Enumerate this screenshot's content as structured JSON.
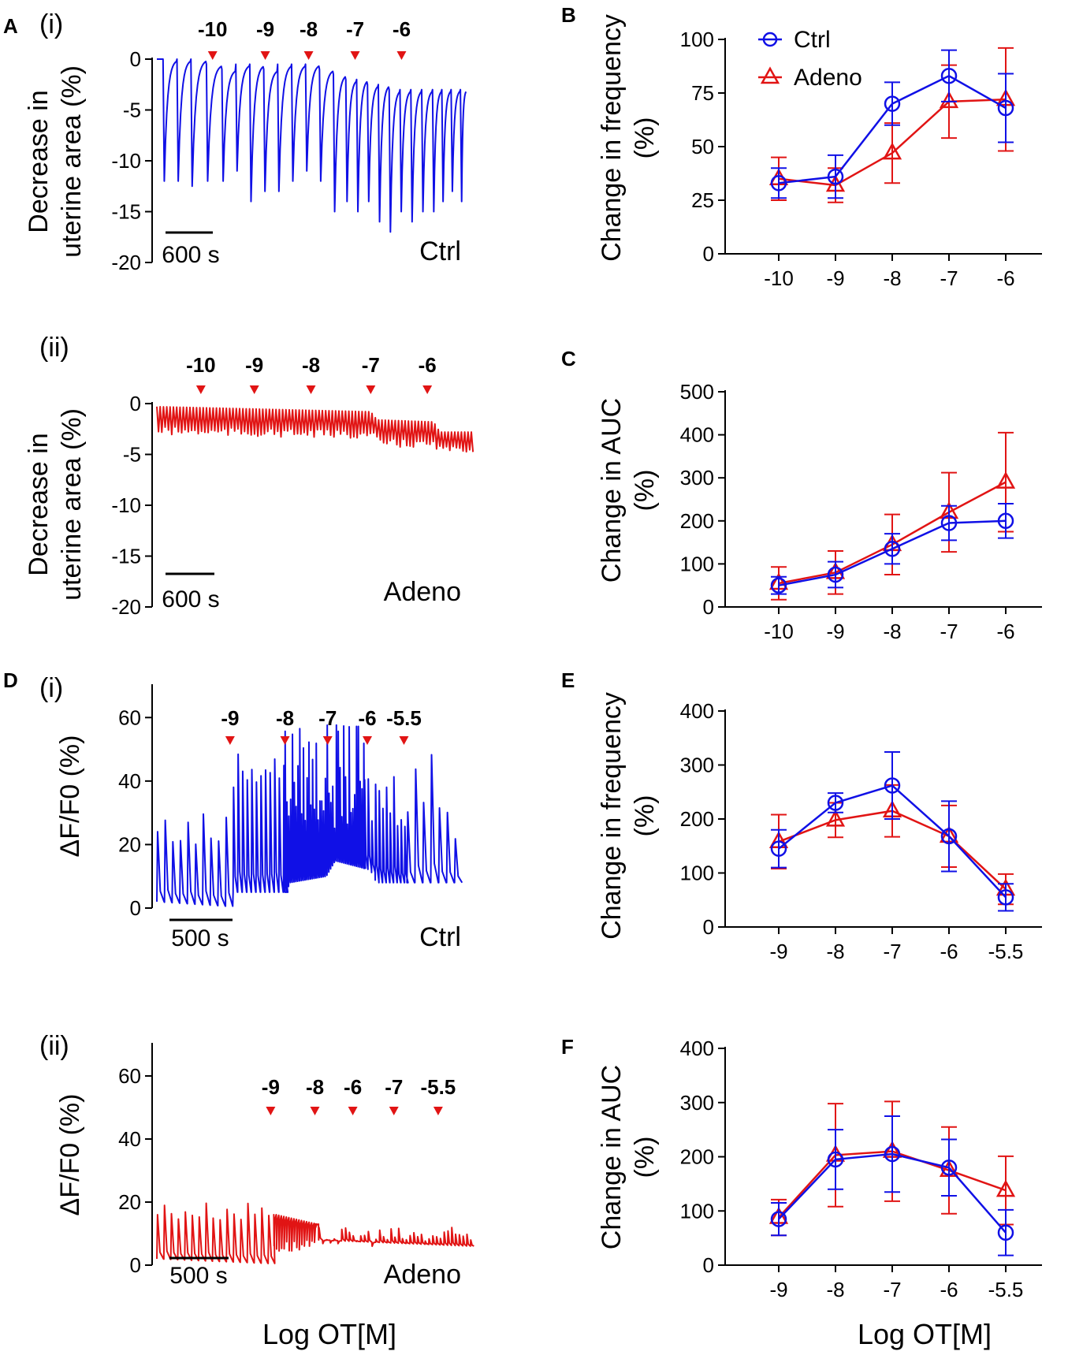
{
  "colors": {
    "ctrl": "#1010e6",
    "adeno": "#e11414",
    "axis": "#000000",
    "arrow": "#e11414"
  },
  "common": {
    "x_title": "Log OT[M]"
  },
  "chart_data": [
    {
      "id": "A-i",
      "type": "line",
      "panel_label": "A",
      "sub_label": "(i)",
      "ylabel": "Decrease in uterine area (%)",
      "ylabel_lines": [
        "Decrease in",
        "uterine area (%)"
      ],
      "ylim": [
        -20,
        0
      ],
      "yticks": [
        0,
        -5,
        -10,
        -15,
        -20
      ],
      "ytick_labels": [
        "0",
        "-5",
        "-10",
        "-15",
        "-20"
      ],
      "condition": "Ctrl",
      "scalebar": "600 s",
      "doses": [
        {
          "label": "-10",
          "t": 0.18
        },
        {
          "label": "-9",
          "t": 0.35
        },
        {
          "label": "-8",
          "t": 0.49
        },
        {
          "label": "-7",
          "t": 0.64
        },
        {
          "label": "-6",
          "t": 0.79
        }
      ],
      "trace": {
        "series": "ctrl",
        "duration": 1,
        "spikes": [
          0.02,
          0.065,
          0.11,
          0.16,
          0.21,
          0.255,
          0.3,
          0.345,
          0.39,
          0.435,
          0.48,
          0.525,
          0.57,
          0.61,
          0.645,
          0.68,
          0.715,
          0.75,
          0.785,
          0.82,
          0.855,
          0.89,
          0.92,
          0.95,
          0.98
        ],
        "depths": [
          -12,
          -12,
          -12.5,
          -12,
          -12,
          -11,
          -14,
          -13,
          -13,
          -12,
          -11,
          -12,
          -15,
          -14,
          -15,
          -14,
          -16,
          -17,
          -15,
          -16,
          -15,
          -15,
          -14,
          -13,
          -14
        ],
        "baselines": [
          0,
          0,
          0,
          -0.5,
          -1,
          -0.5,
          -0.5,
          -1,
          -0.5,
          -0.5,
          -0.5,
          -1,
          -1.5,
          -2,
          -2,
          -2.5,
          -2.5,
          -3,
          -3,
          -3,
          -3,
          -3,
          -3,
          -3,
          -3
        ],
        "shape": "relax"
      }
    },
    {
      "id": "A-ii",
      "type": "line",
      "sub_label": "(ii)",
      "ylabel": "Decrease in uterine area (%)",
      "ylabel_lines": [
        "Decrease in",
        "uterine area (%)"
      ],
      "ylim": [
        -20,
        0
      ],
      "yticks": [
        0,
        -5,
        -10,
        -15,
        -20
      ],
      "ytick_labels": [
        "0",
        "-5",
        "-10",
        "-15",
        "-20"
      ],
      "condition": "Adeno",
      "scalebar": "600 s",
      "doses": [
        {
          "label": "-10",
          "t": 0.14
        },
        {
          "label": "-9",
          "t": 0.31
        },
        {
          "label": "-8",
          "t": 0.49
        },
        {
          "label": "-7",
          "t": 0.68
        },
        {
          "label": "-6",
          "t": 0.86
        }
      ],
      "trace": {
        "series": "adeno",
        "duration": 1,
        "dense": true,
        "cycles": 95,
        "base": [
          [
            0,
            -0.3
          ],
          [
            0.68,
            -0.8
          ],
          [
            0.7,
            -1.6
          ],
          [
            0.88,
            -1.8
          ],
          [
            0.9,
            -2.8
          ],
          [
            1,
            -2.8
          ]
        ],
        "amp": [
          [
            0,
            2.8
          ],
          [
            0.88,
            2.6
          ],
          [
            0.9,
            2
          ],
          [
            1,
            2
          ]
        ]
      }
    },
    {
      "id": "D-i",
      "type": "line",
      "panel_label": "D",
      "sub_label": "(i)",
      "ylabel": "ΔF/F0 (%)",
      "ylim": [
        0,
        70
      ],
      "yticks": [
        0,
        20,
        40,
        60
      ],
      "ytick_labels": [
        "0",
        "20",
        "40",
        "60"
      ],
      "condition": "Ctrl",
      "scalebar": "500 s",
      "doses": [
        {
          "label": "-9",
          "t": 0.24
        },
        {
          "label": "-8",
          "t": 0.42
        },
        {
          "label": "-7",
          "t": 0.56
        },
        {
          "label": "-6",
          "t": 0.69
        },
        {
          "label": "-5.5",
          "t": 0.81
        }
      ],
      "trace": {
        "series": "ctrl",
        "duration": 1,
        "calcium": true,
        "base": [
          [
            0,
            2
          ],
          [
            0.24,
            0.5
          ],
          [
            0.25,
            5
          ],
          [
            0.42,
            5
          ],
          [
            0.43,
            8
          ],
          [
            0.55,
            10
          ],
          [
            0.58,
            15
          ],
          [
            0.7,
            12
          ],
          [
            0.72,
            8
          ],
          [
            1,
            8
          ]
        ],
        "spikes": [
          [
            0,
            0.24,
            0.025,
            [
              18,
              31
            ]
          ],
          [
            0.25,
            0.42,
            0.015,
            [
              38,
              50
            ]
          ],
          [
            0.42,
            0.68,
            0.006,
            [
              25,
              58
            ]
          ],
          [
            0.68,
            0.82,
            0.012,
            [
              25,
              45
            ]
          ],
          [
            0.82,
            1,
            0.026,
            [
              20,
              54
            ]
          ]
        ]
      }
    },
    {
      "id": "D-ii",
      "type": "line",
      "sub_label": "(ii)",
      "ylabel": "ΔF/F0 (%)",
      "ylim": [
        0,
        70
      ],
      "yticks": [
        0,
        20,
        40,
        60
      ],
      "ytick_labels": [
        "0",
        "20",
        "40",
        "60"
      ],
      "condition": "Adeno",
      "scalebar": "500 s",
      "doses": [
        {
          "label": "-9",
          "t": 0.36
        },
        {
          "label": "-8",
          "t": 0.5
        },
        {
          "label": "-6",
          "t": 0.62
        },
        {
          "label": "-7",
          "t": 0.75
        },
        {
          "label": "-5.5",
          "t": 0.89
        }
      ],
      "trace": {
        "series": "adeno",
        "duration": 1,
        "calcium": true,
        "base": [
          [
            0,
            2
          ],
          [
            0.36,
            0.5
          ],
          [
            0.37,
            16
          ],
          [
            0.5,
            13
          ],
          [
            0.51,
            8
          ],
          [
            1,
            6
          ]
        ],
        "spikes": [
          [
            0,
            0.36,
            0.022,
            [
              14,
              20
            ]
          ],
          [
            0.37,
            0.5,
            0.008,
            [
              4,
              8
            ]
          ],
          [
            0.5,
            1,
            0.012,
            [
              6,
              12
            ]
          ]
        ]
      }
    },
    {
      "id": "B",
      "type": "line",
      "panel_label": "B",
      "ylabel": "Change in frequency (%)",
      "ylabel_lines": [
        "Change in frequency",
        "(%)"
      ],
      "ylim": [
        0,
        100
      ],
      "yticks": [
        0,
        25,
        50,
        75,
        100
      ],
      "ytick_labels": [
        "0",
        "25",
        "50",
        "75",
        "100"
      ],
      "categories": [
        "-10",
        "-9",
        "-8",
        "-7",
        "-6"
      ],
      "legend": [
        "Ctrl",
        "Adeno"
      ],
      "series": [
        {
          "name": "Ctrl",
          "marker": "circle",
          "values": [
            33,
            36,
            70,
            83,
            68
          ],
          "errors": [
            7,
            10,
            10,
            12,
            16
          ]
        },
        {
          "name": "Adeno",
          "marker": "triangle",
          "values": [
            35,
            32,
            47,
            71,
            72
          ],
          "errors": [
            10,
            8,
            14,
            17,
            24
          ]
        }
      ]
    },
    {
      "id": "C",
      "type": "line",
      "panel_label": "C",
      "ylabel": "Change in AUC (%)",
      "ylabel_lines": [
        "Change in AUC",
        "(%)"
      ],
      "ylim": [
        0,
        500
      ],
      "yticks": [
        0,
        100,
        200,
        300,
        400,
        500
      ],
      "ytick_labels": [
        "0",
        "100",
        "200",
        "300",
        "400",
        "500"
      ],
      "categories": [
        "-10",
        "-9",
        "-8",
        "-7",
        "-6"
      ],
      "series": [
        {
          "name": "Ctrl",
          "marker": "circle",
          "values": [
            50,
            75,
            135,
            195,
            200
          ],
          "errors": [
            20,
            30,
            35,
            40,
            40
          ]
        },
        {
          "name": "Adeno",
          "marker": "triangle",
          "values": [
            55,
            80,
            145,
            220,
            290
          ],
          "errors": [
            38,
            50,
            70,
            92,
            115
          ]
        }
      ]
    },
    {
      "id": "E",
      "type": "line",
      "panel_label": "E",
      "ylabel": "Change in frequency (%)",
      "ylabel_lines": [
        "Change in frequency",
        "(%)"
      ],
      "ylim": [
        0,
        400
      ],
      "yticks": [
        0,
        100,
        200,
        300,
        400
      ],
      "ytick_labels": [
        "0",
        "100",
        "200",
        "300",
        "400"
      ],
      "categories": [
        "-9",
        "-8",
        "-7",
        "-6",
        "-5.5"
      ],
      "series": [
        {
          "name": "Ctrl",
          "marker": "circle",
          "values": [
            145,
            230,
            262,
            168,
            55
          ],
          "errors": [
            35,
            18,
            62,
            65,
            25
          ]
        },
        {
          "name": "Adeno",
          "marker": "triangle",
          "values": [
            158,
            198,
            215,
            168,
            70
          ],
          "errors": [
            50,
            32,
            48,
            57,
            28
          ]
        }
      ]
    },
    {
      "id": "F",
      "type": "line",
      "panel_label": "F",
      "ylabel": "Change in AUC (%)",
      "ylabel_lines": [
        "Change in AUC",
        "(%)"
      ],
      "ylim": [
        0,
        400
      ],
      "yticks": [
        0,
        100,
        200,
        300,
        400
      ],
      "ytick_labels": [
        "0",
        "100",
        "200",
        "300",
        "400"
      ],
      "categories": [
        "-9",
        "-8",
        "-7",
        "-6",
        "-5.5"
      ],
      "x_title": "Log OT[M]",
      "series": [
        {
          "name": "Ctrl",
          "marker": "circle",
          "values": [
            85,
            195,
            205,
            180,
            60
          ],
          "errors": [
            30,
            55,
            70,
            52,
            42
          ]
        },
        {
          "name": "Adeno",
          "marker": "triangle",
          "values": [
            88,
            203,
            210,
            175,
            138
          ],
          "errors": [
            33,
            95,
            92,
            80,
            63
          ]
        }
      ]
    }
  ]
}
